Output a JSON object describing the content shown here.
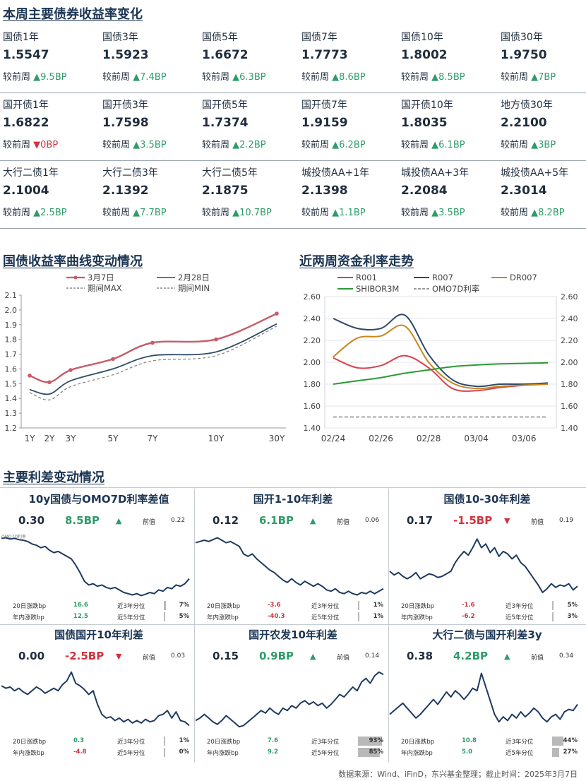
{
  "titles": {
    "weekly": "本周主要债券收益率变化",
    "curve": "国债收益率曲线变动情况",
    "funding": "近两周资金利率走势",
    "spreads": "主要利差变动情况"
  },
  "chg_prefix": "较前周",
  "bonds": [
    [
      {
        "name": "国债1年",
        "value": "1.5547",
        "dir": "up",
        "change": "9.5BP"
      },
      {
        "name": "国债3年",
        "value": "1.5923",
        "dir": "up",
        "change": "7.4BP"
      },
      {
        "name": "国债5年",
        "value": "1.6672",
        "dir": "up",
        "change": "6.3BP"
      },
      {
        "name": "国债7年",
        "value": "1.7773",
        "dir": "up",
        "change": "8.6BP"
      },
      {
        "name": "国债10年",
        "value": "1.8002",
        "dir": "up",
        "change": "8.5BP"
      },
      {
        "name": "国债30年",
        "value": "1.9750",
        "dir": "up",
        "change": "7BP"
      }
    ],
    [
      {
        "name": "国开债1年",
        "value": "1.6822",
        "dir": "down",
        "change": "0BP"
      },
      {
        "name": "国开债3年",
        "value": "1.7598",
        "dir": "up",
        "change": "3.5BP"
      },
      {
        "name": "国开债5年",
        "value": "1.7374",
        "dir": "up",
        "change": "2.2BP"
      },
      {
        "name": "国开债7年",
        "value": "1.9159",
        "dir": "up",
        "change": "6.2BP"
      },
      {
        "name": "国开债10年",
        "value": "1.8035",
        "dir": "up",
        "change": "6.1BP"
      },
      {
        "name": "地方债30年",
        "value": "2.2100",
        "dir": "up",
        "change": "3BP"
      }
    ],
    [
      {
        "name": "大行二债1年",
        "value": "2.1004",
        "dir": "up",
        "change": "2.5BP"
      },
      {
        "name": "大行二债3年",
        "value": "2.1392",
        "dir": "up",
        "change": "7.7BP"
      },
      {
        "name": "大行二债5年",
        "value": "2.1875",
        "dir": "up",
        "change": "10.7BP"
      },
      {
        "name": "城投债AA+1年",
        "value": "2.1398",
        "dir": "up",
        "change": "1.1BP"
      },
      {
        "name": "城投债AA+3年",
        "value": "2.2084",
        "dir": "up",
        "change": "3.5BP"
      },
      {
        "name": "城投债AA+5年",
        "value": "2.3014",
        "dir": "up",
        "change": "8.2BP"
      }
    ]
  ],
  "colors": {
    "up": "#2e9c6a",
    "down": "#d2323c",
    "title": "#1c3553",
    "line": "#1e3a5f"
  },
  "chart_data": [
    {
      "type": "line",
      "title": "国债收益率曲线变动情况",
      "categories": [
        "1Y",
        "2Y",
        "3Y",
        "5Y",
        "7Y",
        "10Y",
        "30Y"
      ],
      "x": [
        1,
        2,
        3,
        5,
        7,
        10,
        30
      ],
      "ylim": [
        1.2,
        2.1
      ],
      "yticks": [
        1.2,
        1.3,
        1.4,
        1.5,
        1.6,
        1.7,
        1.8,
        1.9,
        2.0,
        2.1
      ],
      "series": [
        {
          "name": "3月7日",
          "color": "#c85a6a",
          "values": [
            1.5547,
            1.51,
            1.5923,
            1.6672,
            1.7773,
            1.8002,
            1.975
          ]
        },
        {
          "name": "2月28日",
          "color": "#2f4a68",
          "values": [
            1.46,
            1.43,
            1.52,
            1.6,
            1.69,
            1.715,
            1.905
          ]
        },
        {
          "name": "期间MAX",
          "color": "#888888",
          "dash": true,
          "values": [
            1.555,
            1.51,
            1.595,
            1.67,
            1.78,
            1.8,
            1.975
          ]
        },
        {
          "name": "期间MIN",
          "color": "#888888",
          "dash": true,
          "values": [
            1.44,
            1.39,
            1.48,
            1.56,
            1.655,
            1.69,
            1.89
          ]
        }
      ],
      "grid": false,
      "legend": "top"
    },
    {
      "type": "line",
      "title": "近两周资金利率走势",
      "x_ticks": [
        "02/24",
        "02/26",
        "02/28",
        "03/04",
        "03/06"
      ],
      "x": [
        "02/24",
        "02/25",
        "02/26",
        "02/27",
        "02/28",
        "03/03",
        "03/04",
        "03/05",
        "03/06",
        "03/07"
      ],
      "ylim": [
        1.4,
        2.6
      ],
      "yticks": [
        1.4,
        1.6,
        1.8,
        2.0,
        2.2,
        2.4,
        2.6
      ],
      "series": [
        {
          "name": "R001",
          "color": "#d9414e",
          "values": [
            2.04,
            1.95,
            1.97,
            2.06,
            1.95,
            1.76,
            1.74,
            1.77,
            1.79,
            1.81
          ]
        },
        {
          "name": "R007",
          "color": "#2d4a68",
          "values": [
            2.4,
            2.31,
            2.31,
            2.43,
            2.07,
            1.84,
            1.78,
            1.8,
            1.8,
            1.81
          ]
        },
        {
          "name": "DR007",
          "color": "#c8861f",
          "values": [
            2.05,
            2.22,
            2.24,
            2.33,
            2.0,
            1.81,
            1.76,
            1.78,
            1.79,
            1.8
          ]
        },
        {
          "name": "SHIBOR3M",
          "color": "#2a9a36",
          "values": [
            1.8,
            1.83,
            1.86,
            1.9,
            1.93,
            1.96,
            1.975,
            1.985,
            1.99,
            1.995
          ]
        },
        {
          "name": "OMO7D利率",
          "color": "#999999",
          "dash": true,
          "values": [
            1.5,
            1.5,
            1.5,
            1.5,
            1.5,
            1.5,
            1.5,
            1.5,
            1.5,
            1.5
          ]
        }
      ],
      "grid": true,
      "legend": "top"
    }
  ],
  "spread_panels": [
    {
      "title": "10y国债与OMO7D利率差值",
      "value": "0.30",
      "change": "8.5BP",
      "dir": "up",
      "prev_label": "前值",
      "prev": "0.22",
      "note": "OMO7D利率",
      "stats": [
        {
          "label": "20日涨跌bp",
          "value": "16.6",
          "pct_label": "近3年分位",
          "pct": 7
        },
        {
          "label": "年内涨跌bp",
          "value": "12.5",
          "pct_label": "近5年分位",
          "pct": 5
        }
      ],
      "spark": [
        0.95,
        0.96,
        0.94,
        0.95,
        0.93,
        0.92,
        0.9,
        0.86,
        0.84,
        0.8,
        0.82,
        0.76,
        0.72,
        0.74,
        0.7,
        0.66,
        0.62,
        0.52,
        0.4,
        0.26,
        0.2,
        0.22,
        0.18,
        0.2,
        0.16,
        0.14,
        0.16,
        0.12,
        0.08,
        0.06,
        0.04,
        0.06,
        0.03,
        0.05,
        0.08,
        0.06,
        0.12,
        0.1,
        0.16,
        0.14,
        0.2,
        0.18,
        0.22,
        0.3
      ]
    },
    {
      "title": "国开1-10年利差",
      "value": "0.12",
      "change": "6.1BP",
      "dir": "up",
      "prev_label": "前值",
      "prev": "0.06",
      "stats": [
        {
          "label": "20日涨跌bp",
          "value": "-3.6",
          "pct_label": "近3年分位",
          "pct": 1
        },
        {
          "label": "年内涨跌bp",
          "value": "-40.3",
          "pct_label": "近5年分位",
          "pct": 1
        }
      ],
      "spark": [
        0.88,
        0.9,
        0.92,
        0.9,
        0.93,
        0.96,
        0.92,
        0.88,
        0.9,
        0.86,
        0.82,
        0.7,
        0.66,
        0.7,
        0.62,
        0.56,
        0.5,
        0.44,
        0.4,
        0.34,
        0.28,
        0.24,
        0.3,
        0.24,
        0.2,
        0.26,
        0.22,
        0.18,
        0.22,
        0.18,
        0.12,
        0.1,
        0.14,
        0.08,
        0.06,
        0.1,
        0.06,
        0.04,
        0.08,
        0.06,
        0.1,
        0.06,
        0.1,
        0.14
      ]
    },
    {
      "title": "国债10-30年利差",
      "value": "0.17",
      "change": "-1.5BP",
      "dir": "down",
      "prev_label": "前值",
      "prev": "0.19",
      "stats": [
        {
          "label": "20日涨跌bp",
          "value": "-1.6",
          "pct_label": "近3年分位",
          "pct": 5
        },
        {
          "label": "年内涨跌bp",
          "value": "-6.2",
          "pct_label": "近5年分位",
          "pct": 3
        }
      ],
      "spark": [
        0.42,
        0.36,
        0.4,
        0.34,
        0.3,
        0.34,
        0.4,
        0.3,
        0.34,
        0.38,
        0.36,
        0.32,
        0.34,
        0.38,
        0.42,
        0.56,
        0.66,
        0.74,
        0.68,
        0.8,
        0.94,
        0.8,
        0.86,
        0.72,
        0.8,
        0.66,
        0.74,
        0.7,
        0.62,
        0.68,
        0.56,
        0.5,
        0.4,
        0.3,
        0.2,
        0.08,
        0.14,
        0.22,
        0.16,
        0.2,
        0.18,
        0.22,
        0.12,
        0.18
      ]
    },
    {
      "title": "国债国开10年利差",
      "value": "0.00",
      "change": "-2.5BP",
      "dir": "down",
      "prev_label": "前值",
      "prev": "0.03",
      "stats": [
        {
          "label": "20日涨跌bp",
          "value": "0.3",
          "pct_label": "近3年分位",
          "pct": 1
        },
        {
          "label": "年内涨跌bp",
          "value": "-4.8",
          "pct_label": "近5年分位",
          "pct": 0
        }
      ],
      "spark": [
        0.76,
        0.72,
        0.74,
        0.68,
        0.72,
        0.66,
        0.62,
        0.68,
        0.74,
        0.7,
        0.64,
        0.68,
        0.72,
        0.68,
        0.78,
        0.84,
        0.98,
        0.8,
        0.76,
        0.7,
        0.62,
        0.68,
        0.46,
        0.3,
        0.24,
        0.26,
        0.2,
        0.24,
        0.18,
        0.22,
        0.16,
        0.2,
        0.16,
        0.22,
        0.18,
        0.2,
        0.28,
        0.3,
        0.36,
        0.24,
        0.34,
        0.2,
        0.18,
        0.12
      ]
    },
    {
      "title": "国开农发10年利差",
      "value": "0.15",
      "change": "0.9BP",
      "dir": "up",
      "prev_label": "前值",
      "prev": "0.14",
      "stats": [
        {
          "label": "20日涨跌bp",
          "value": "7.6",
          "pct_label": "近3年分位",
          "pct": 93
        },
        {
          "label": "年内涨跌bp",
          "value": "9.2",
          "pct_label": "近5年分位",
          "pct": 85
        }
      ],
      "spark": [
        0.2,
        0.24,
        0.3,
        0.24,
        0.18,
        0.14,
        0.2,
        0.28,
        0.22,
        0.16,
        0.1,
        0.12,
        0.18,
        0.24,
        0.3,
        0.36,
        0.32,
        0.4,
        0.34,
        0.3,
        0.4,
        0.36,
        0.44,
        0.4,
        0.48,
        0.52,
        0.46,
        0.5,
        0.44,
        0.48,
        0.4,
        0.46,
        0.54,
        0.62,
        0.58,
        0.66,
        0.74,
        0.68,
        0.82,
        0.88,
        0.8,
        0.92,
        0.98,
        0.94
      ]
    },
    {
      "title": "大行二债与国开利差3y",
      "value": "0.38",
      "change": "4.2BP",
      "dir": "up",
      "prev_label": "前值",
      "prev": "0.34",
      "stats": [
        {
          "label": "20日涨跌bp",
          "value": "10.8",
          "pct_label": "近3年分位",
          "pct": 44
        },
        {
          "label": "年内涨跌bp",
          "value": "5.0",
          "pct_label": "近5年分位",
          "pct": 27
        }
      ],
      "spark": [
        0.3,
        0.36,
        0.42,
        0.48,
        0.4,
        0.32,
        0.24,
        0.3,
        0.38,
        0.46,
        0.54,
        0.46,
        0.56,
        0.66,
        0.58,
        0.68,
        0.62,
        0.54,
        0.62,
        0.72,
        0.68,
        0.96,
        0.74,
        0.52,
        0.3,
        0.18,
        0.26,
        0.2,
        0.3,
        0.24,
        0.34,
        0.26,
        0.32,
        0.4,
        0.34,
        0.24,
        0.18,
        0.26,
        0.3,
        0.22,
        0.34,
        0.38,
        0.36,
        0.46
      ]
    }
  ],
  "footer": "数据来源：Wind、iFinD，东兴基金整理；截止时间：2025年3月7日"
}
